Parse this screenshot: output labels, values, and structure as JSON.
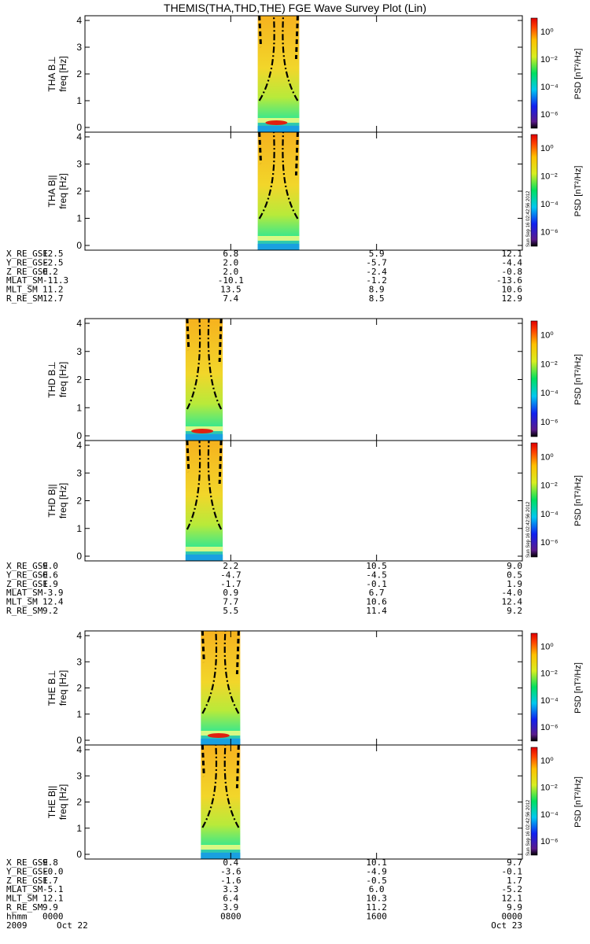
{
  "chart_data": {
    "type": "heatmap",
    "title": "THEMIS(THA,THD,THE) FGE Wave Survey Plot (Lin)",
    "colorbar": {
      "label": "PSD [nT²/Hz]",
      "ticks": [
        "10⁰",
        "10⁻²",
        "10⁻⁴",
        "10⁻⁶"
      ],
      "scale": "log"
    },
    "stamp": "Sun Sep 16 02:42:56 2012",
    "x_axis": {
      "ticks": [
        "0000",
        "0800",
        "1600",
        "0000"
      ],
      "date_labels": [
        "2009",
        "Oct 22",
        "Oct 23"
      ],
      "unit": "hhmm"
    },
    "panels": [
      {
        "probe": "THA",
        "label": "THA B⊥",
        "ylabel": "freq [Hz]",
        "ylim": [
          0,
          4
        ],
        "yticks": [
          "0",
          "1",
          "2",
          "3",
          "4"
        ],
        "data_interval": [
          0.395,
          0.49
        ]
      },
      {
        "probe": "THA",
        "label": "THA B||",
        "ylabel": "freq [Hz]",
        "ylim": [
          0,
          4
        ],
        "yticks": [
          "0",
          "1",
          "2",
          "3",
          "4"
        ],
        "data_interval": [
          0.395,
          0.49
        ]
      },
      {
        "probe": "THD",
        "label": "THD B⊥",
        "ylabel": "freq [Hz]",
        "ylim": [
          0,
          4
        ],
        "yticks": [
          "0",
          "1",
          "2",
          "3",
          "4"
        ],
        "data_interval": [
          0.23,
          0.315
        ]
      },
      {
        "probe": "THD",
        "label": "THD B||",
        "ylabel": "freq [Hz]",
        "ylim": [
          0,
          4
        ],
        "yticks": [
          "0",
          "1",
          "2",
          "3",
          "4"
        ],
        "data_interval": [
          0.23,
          0.315
        ]
      },
      {
        "probe": "THE",
        "label": "THE B⊥",
        "ylabel": "freq [Hz]",
        "ylim": [
          0,
          4
        ],
        "yticks": [
          "0",
          "1",
          "2",
          "3",
          "4"
        ],
        "data_interval": [
          0.265,
          0.355
        ]
      },
      {
        "probe": "THE",
        "label": "THE B||",
        "ylabel": "freq [Hz]",
        "ylim": [
          0,
          4
        ],
        "yticks": [
          "0",
          "1",
          "2",
          "3",
          "4"
        ],
        "data_interval": [
          0.265,
          0.355
        ]
      }
    ],
    "ephemeris": [
      {
        "probe": "THA",
        "rows": [
          {
            "name": "X_RE_GSE",
            "values": [
              "12.5",
              "6.8",
              "5.9",
              "12.1"
            ]
          },
          {
            "name": "Y_RE_GSE",
            "values": [
              "-2.5",
              "2.0",
              "-5.7",
              "-4.4"
            ]
          },
          {
            "name": "Z_RE_GSE",
            "values": [
              "0.2",
              "2.0",
              "-2.4",
              "-0.8"
            ]
          },
          {
            "name": "MLAT_SM",
            "values": [
              "-11.3",
              "-10.1",
              "-1.2",
              "-13.6"
            ]
          },
          {
            "name": "MLT_SM",
            "values": [
              "11.2",
              "13.5",
              "8.9",
              "10.6"
            ]
          },
          {
            "name": "R_RE_SM",
            "values": [
              "12.7",
              "7.4",
              "8.5",
              "12.9"
            ]
          }
        ]
      },
      {
        "probe": "THD",
        "rows": [
          {
            "name": "X_RE_GSE",
            "values": [
              "9.0",
              "2.2",
              "10.5",
              "9.0"
            ]
          },
          {
            "name": "Y_RE_GSE",
            "values": [
              "0.6",
              "-4.7",
              "-4.5",
              "0.5"
            ]
          },
          {
            "name": "Z_RE_GSE",
            "values": [
              "1.9",
              "-1.7",
              "-0.1",
              "1.9"
            ]
          },
          {
            "name": "MLAT_SM",
            "values": [
              "-3.9",
              "0.9",
              "6.7",
              "-4.0"
            ]
          },
          {
            "name": "MLT_SM",
            "values": [
              "12.4",
              "7.7",
              "10.6",
              "12.4"
            ]
          },
          {
            "name": "R_RE_SM",
            "values": [
              "9.2",
              "5.5",
              "11.4",
              "9.2"
            ]
          }
        ]
      },
      {
        "probe": "THE",
        "rows": [
          {
            "name": "X_RE_GSE",
            "values": [
              "9.8",
              "0.4",
              "10.1",
              "9.7"
            ]
          },
          {
            "name": "Y_RE_GSE",
            "values": [
              "-0.0",
              "-3.6",
              "-4.9",
              "-0.1"
            ]
          },
          {
            "name": "Z_RE_GSE",
            "values": [
              "1.7",
              "-1.6",
              "-0.5",
              "1.7"
            ]
          },
          {
            "name": "MLAT_SM",
            "values": [
              "-5.1",
              "3.3",
              "6.0",
              "-5.2"
            ]
          },
          {
            "name": "MLT_SM",
            "values": [
              "12.1",
              "6.4",
              "10.3",
              "12.1"
            ]
          },
          {
            "name": "R_RE_SM",
            "values": [
              "9.9",
              "3.9",
              "11.2",
              "9.9"
            ]
          }
        ]
      }
    ]
  }
}
